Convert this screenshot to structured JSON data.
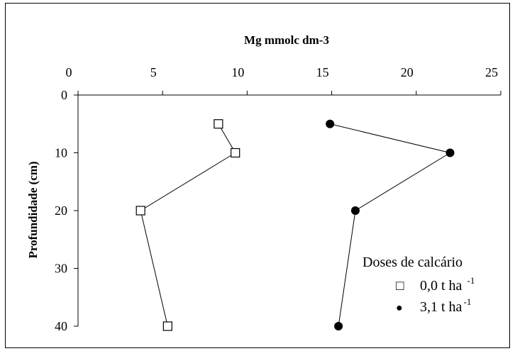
{
  "chart_data": {
    "type": "scatter",
    "xlabel": "Mg mmolc dm-3",
    "ylabel": "Profundidade (cm)",
    "xlim": [
      0,
      25
    ],
    "ylim": [
      0,
      40
    ],
    "x_ticks": [
      0,
      5,
      10,
      15,
      20,
      25
    ],
    "y_ticks": [
      0,
      10,
      20,
      30,
      40
    ],
    "x_axis_position": "top",
    "y_inverted": true,
    "grid": false,
    "legend": {
      "title": "Doses de calcário",
      "position": "bottom-right",
      "entries": [
        {
          "symbol": "□",
          "label": "0,0 t ha",
          "superscript": "-1"
        },
        {
          "symbol": "●",
          "label": "3,1 t ha",
          "superscript": "-1"
        }
      ]
    },
    "series": [
      {
        "marker": "open-square",
        "color": "#000000",
        "points": [
          {
            "x": 8.3,
            "y": 5
          },
          {
            "x": 9.3,
            "y": 10
          },
          {
            "x": 3.7,
            "y": 20
          },
          {
            "x": 5.3,
            "y": 40
          }
        ]
      },
      {
        "marker": "filled-circle",
        "color": "#000000",
        "points": [
          {
            "x": 14.9,
            "y": 5
          },
          {
            "x": 22.0,
            "y": 10
          },
          {
            "x": 16.4,
            "y": 20
          },
          {
            "x": 15.4,
            "y": 40
          }
        ]
      }
    ]
  }
}
